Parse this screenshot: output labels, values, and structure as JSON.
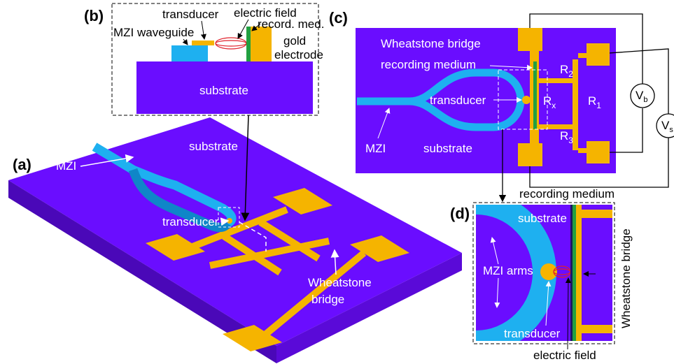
{
  "panel_a": {
    "label": "(a)",
    "substrate": "substrate",
    "mzi": "MZI",
    "transducer": "transducer",
    "bridge_line1": "Wheatstone",
    "bridge_line2": "bridge"
  },
  "panel_b": {
    "label": "(b)",
    "transducer": "transducer",
    "electric_field": "electric field",
    "recording_medium": "record. med.",
    "mzi_waveguide": "MZI waveguide",
    "electrode_line1": "gold",
    "electrode_line2": "electrode",
    "substrate": "substrate"
  },
  "panel_c": {
    "label": "(c)",
    "bridge": "Wheatstone bridge",
    "recording_medium": "recording medium",
    "r2": {
      "base": "R",
      "sub": "2"
    },
    "r1": {
      "base": "R",
      "sub": "1"
    },
    "rx": {
      "base": "R",
      "sub": "x"
    },
    "r3": {
      "base": "R",
      "sub": "3"
    },
    "transducer": "transducer",
    "mzi": "MZI",
    "substrate": "substrate",
    "vb": {
      "base": "V",
      "sub": "b"
    },
    "vs": {
      "base": "V",
      "sub": "s"
    },
    "recording_medium_below": "recording medium"
  },
  "panel_d": {
    "label": "(d)",
    "substrate": "substrate",
    "mzi_arms": "MZI arms",
    "transducer": "transducer",
    "electric_field": "electric field",
    "bridge": "Wheatstone bridge"
  }
}
